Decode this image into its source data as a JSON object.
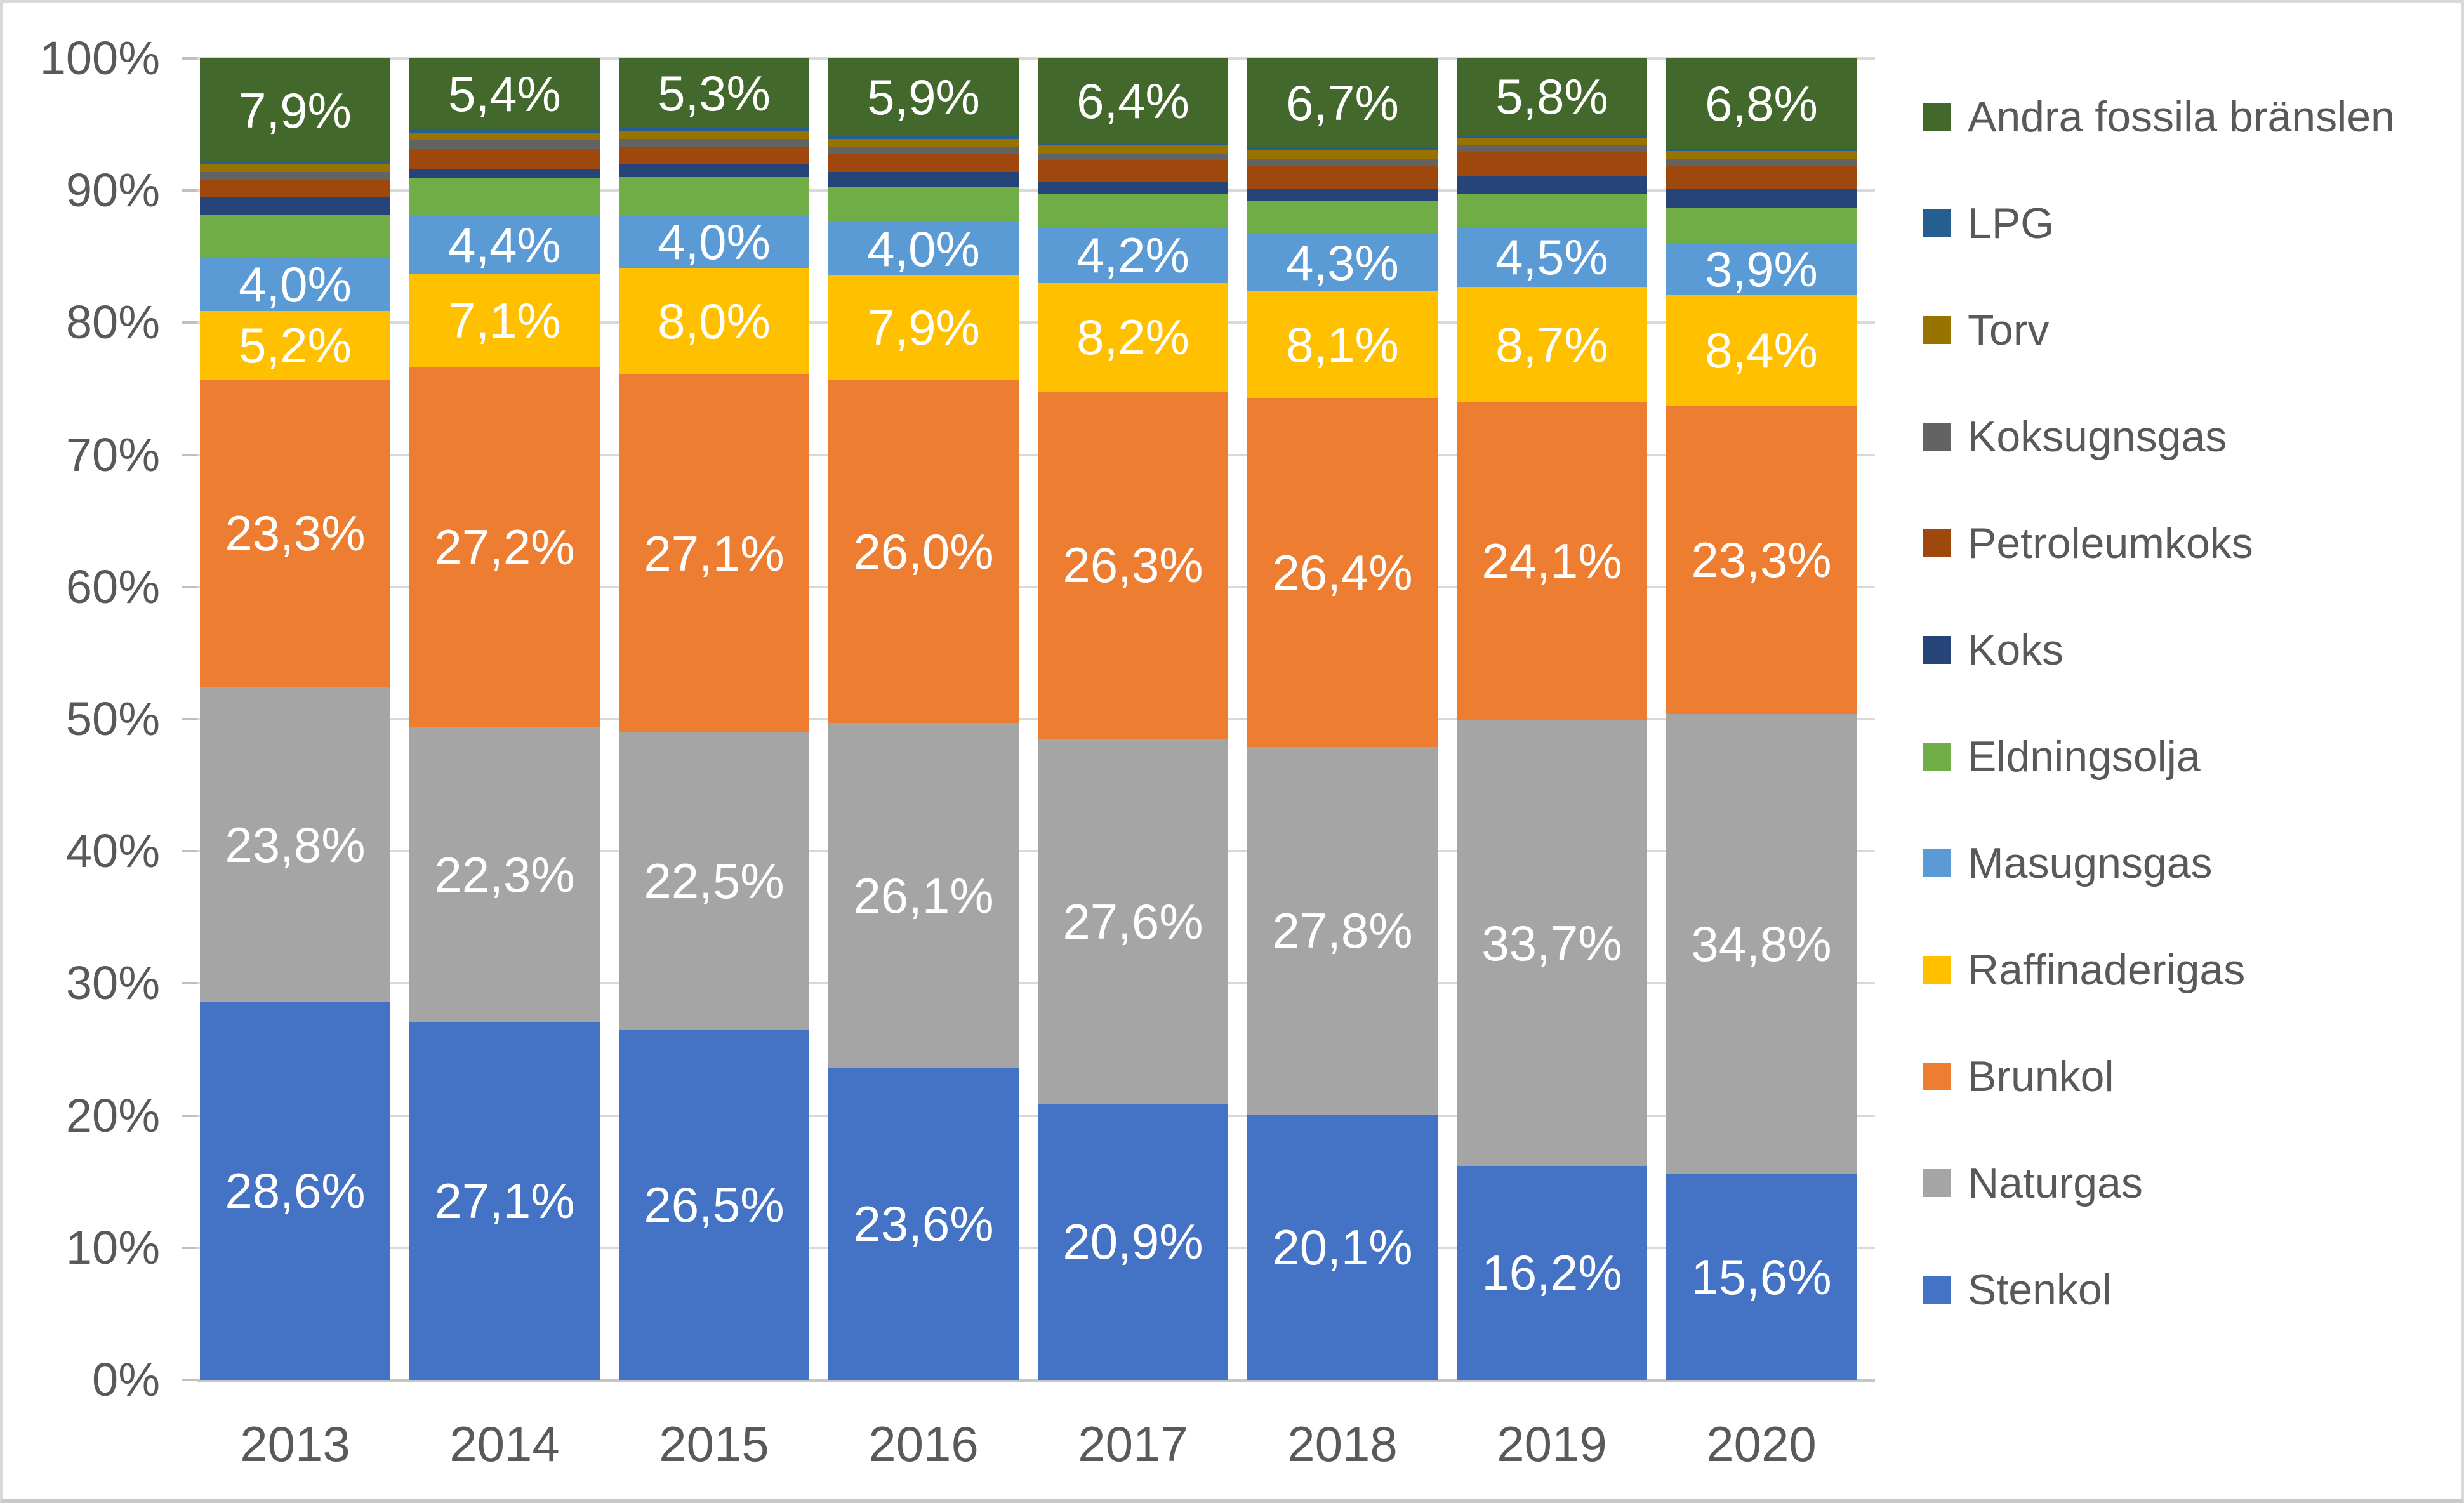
{
  "chart_data": {
    "type": "bar",
    "subtype": "stacked-100-percent",
    "title": "",
    "xlabel": "",
    "ylabel": "",
    "categories": [
      "2013",
      "2014",
      "2015",
      "2016",
      "2017",
      "2018",
      "2019",
      "2020"
    ],
    "stack_order": "bottom-to-top as listed in series",
    "series": [
      {
        "name": "Stenkol",
        "color": "#4472C4",
        "labeled": true,
        "values": [
          28.6,
          27.1,
          26.5,
          23.6,
          20.9,
          20.1,
          16.2,
          15.6
        ]
      },
      {
        "name": "Naturgas",
        "color": "#A5A5A5",
        "labeled": true,
        "values": [
          23.8,
          22.3,
          22.5,
          26.1,
          27.6,
          27.8,
          33.7,
          34.8
        ]
      },
      {
        "name": "Brunkol",
        "color": "#ED7D31",
        "labeled": true,
        "values": [
          23.3,
          27.2,
          27.1,
          26.0,
          26.3,
          26.4,
          24.1,
          23.3
        ]
      },
      {
        "name": "Raffinaderigas",
        "color": "#FFC000",
        "labeled": true,
        "values": [
          5.2,
          7.1,
          8.0,
          7.9,
          8.2,
          8.1,
          8.7,
          8.4
        ]
      },
      {
        "name": "Masugnsgas",
        "color": "#5B9BD5",
        "labeled": true,
        "values": [
          4.0,
          4.4,
          4.0,
          4.0,
          4.2,
          4.3,
          4.5,
          3.9
        ]
      },
      {
        "name": "Eldningsolja",
        "color": "#70AD47",
        "labeled": false,
        "values": [
          3.25,
          2.8,
          2.9,
          2.7,
          2.55,
          2.55,
          2.5,
          2.7
        ]
      },
      {
        "name": "Koks",
        "color": "#264478",
        "labeled": false,
        "values": [
          1.35,
          0.7,
          1.0,
          1.1,
          0.95,
          0.9,
          1.4,
          1.4
        ]
      },
      {
        "name": "Petroleumkoks",
        "color": "#9E480E",
        "labeled": false,
        "values": [
          1.3,
          1.6,
          1.3,
          1.4,
          1.6,
          1.75,
          1.8,
          1.8
        ]
      },
      {
        "name": "Koksugnsgas",
        "color": "#636363",
        "labeled": false,
        "values": [
          0.6,
          0.6,
          0.6,
          0.5,
          0.45,
          0.5,
          0.5,
          0.5
        ]
      },
      {
        "name": "Torv",
        "color": "#997300",
        "labeled": false,
        "values": [
          0.6,
          0.6,
          0.6,
          0.6,
          0.65,
          0.7,
          0.6,
          0.6
        ]
      },
      {
        "name": "LPG",
        "color": "#255E91",
        "labeled": false,
        "values": [
          0.1,
          0.2,
          0.2,
          0.2,
          0.2,
          0.2,
          0.2,
          0.2
        ]
      },
      {
        "name": "Andra fossila bränslen",
        "color": "#43682B",
        "labeled": true,
        "values": [
          7.9,
          5.4,
          5.3,
          5.9,
          6.4,
          6.7,
          5.8,
          6.8
        ]
      }
    ],
    "data_label_format": "one decimal, comma separator, percent sign, e.g. 28,6%",
    "legend": {
      "position": "right",
      "entries": [
        "Andra fossila bränslen",
        "LPG",
        "Torv",
        "Koksugnsgas",
        "Petroleumkoks",
        "Koks",
        "Eldningsolja",
        "Masugnsgas",
        "Raffinaderigas",
        "Brunkol",
        "Naturgas",
        "Stenkol"
      ]
    },
    "y_axis": {
      "min": 0,
      "max": 100,
      "tick_labels": [
        "0%",
        "10%",
        "20%",
        "30%",
        "40%",
        "50%",
        "60%",
        "70%",
        "80%",
        "90%",
        "100%"
      ],
      "gridlines": true,
      "gridline_color": "#d9d9d9"
    },
    "colors": {
      "axis_text": "#595959",
      "data_label_text": "#ffffff",
      "chart_border": "#d9d9d9",
      "background": "#ffffff"
    }
  }
}
